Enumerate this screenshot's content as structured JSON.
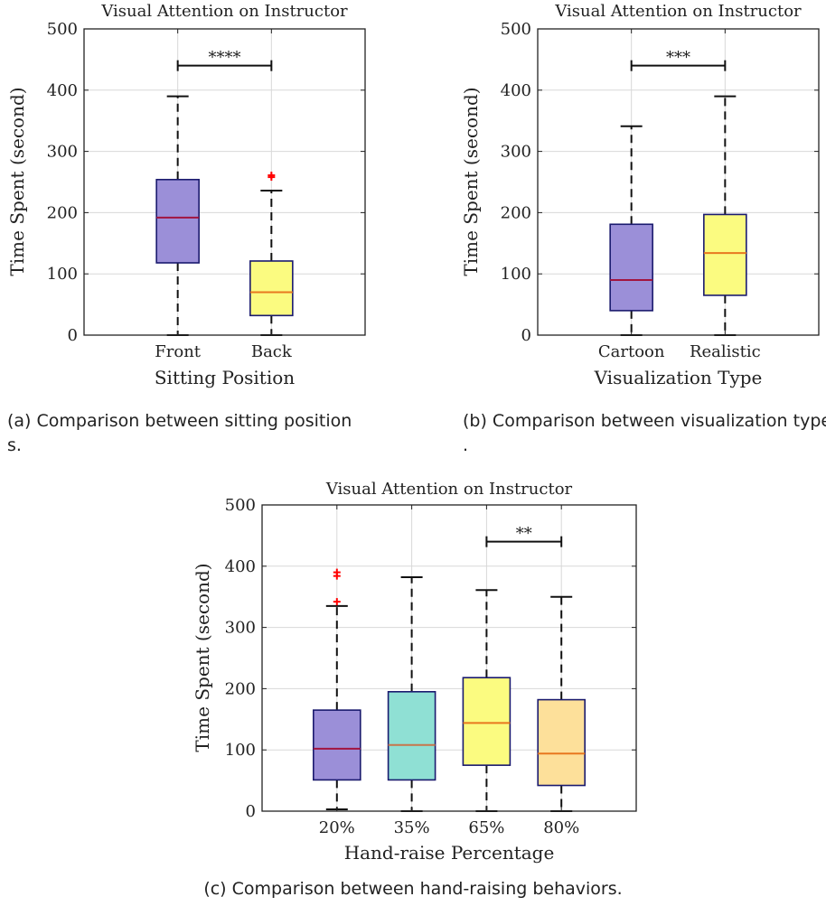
{
  "chart_data": [
    {
      "type": "box",
      "title": "Visual Attention on Instructor",
      "xlabel": "Sitting Position",
      "ylabel": "Time Spent (second)",
      "ylim": [
        0,
        500
      ],
      "yticks": [
        "0",
        "100",
        "200",
        "300",
        "400",
        "500"
      ],
      "grid": true,
      "categories": [
        "Front",
        "Back"
      ],
      "boxes": [
        {
          "category": "Front",
          "min": 0,
          "q1": 118,
          "median": 192,
          "q3": 254,
          "max": 390,
          "outliers": [],
          "color": "#9b8fd8",
          "median_color": "#a2143f"
        },
        {
          "category": "Back",
          "min": 0,
          "q1": 32,
          "median": 70,
          "q3": 121,
          "max": 236,
          "outliers": [
            258,
            261
          ],
          "color": "#fbfb80",
          "median_color": "#e8781f"
        }
      ],
      "significance": [
        {
          "from": "Front",
          "to": "Back",
          "y": 440,
          "label": "****"
        }
      ],
      "caption": "(a) Comparison between sitting positions."
    },
    {
      "type": "box",
      "title": "Visual Attention on Instructor",
      "xlabel": "Visualization Type",
      "ylabel": "Time Spent (second)",
      "ylim": [
        0,
        500
      ],
      "yticks": [
        "0",
        "100",
        "200",
        "300",
        "400",
        "500"
      ],
      "grid": true,
      "categories": [
        "Cartoon",
        "Realistic"
      ],
      "boxes": [
        {
          "category": "Cartoon",
          "min": 0,
          "q1": 40,
          "median": 90,
          "q3": 181,
          "max": 341,
          "outliers": [],
          "color": "#9b8fd8",
          "median_color": "#a2143f"
        },
        {
          "category": "Realistic",
          "min": 0,
          "q1": 65,
          "median": 134,
          "q3": 197,
          "max": 390,
          "outliers": [],
          "color": "#fbfb80",
          "median_color": "#e8781f"
        }
      ],
      "significance": [
        {
          "from": "Cartoon",
          "to": "Realistic",
          "y": 440,
          "label": "***"
        }
      ],
      "caption": "(b) Comparison between visualization types."
    },
    {
      "type": "box",
      "title": "Visual Attention on Instructor",
      "xlabel": "Hand-raise Percentage",
      "ylabel": "Time Spent (second)",
      "ylim": [
        0,
        500
      ],
      "yticks": [
        "0",
        "100",
        "200",
        "300",
        "400",
        "500"
      ],
      "grid": true,
      "categories": [
        "20%",
        "35%",
        "65%",
        "80%"
      ],
      "boxes": [
        {
          "category": "20%",
          "min": 3,
          "q1": 51,
          "median": 102,
          "q3": 165,
          "max": 335,
          "outliers": [
            342,
            384,
            390
          ],
          "color": "#9b8fd8",
          "median_color": "#a2143f"
        },
        {
          "category": "35%",
          "min": 0,
          "q1": 51,
          "median": 108,
          "q3": 195,
          "max": 382,
          "outliers": [],
          "color": "#8fe0d4",
          "median_color": "#c8754a"
        },
        {
          "category": "65%",
          "min": 0,
          "q1": 75,
          "median": 144,
          "q3": 218,
          "max": 361,
          "outliers": [],
          "color": "#fbfb80",
          "median_color": "#e8781f"
        },
        {
          "category": "80%",
          "min": 0,
          "q1": 42,
          "median": 94,
          "q3": 182,
          "max": 350,
          "outliers": [],
          "color": "#fde09a",
          "median_color": "#e8781f"
        }
      ],
      "significance": [
        {
          "from": "65%",
          "to": "80%",
          "y": 440,
          "label": "**"
        }
      ],
      "caption": "(c) Comparison between hand-raising behaviors."
    }
  ]
}
